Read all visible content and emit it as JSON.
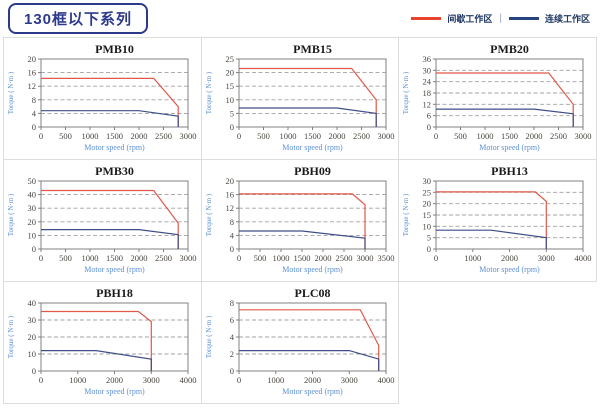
{
  "header": {
    "title": "130框以下系列",
    "legend_separator": "|",
    "legend": [
      {
        "label": "间歇工作区",
        "color": "#e8432c"
      },
      {
        "label": "连续工作区",
        "color": "#26457e"
      }
    ]
  },
  "chart_style": {
    "grid_color": "#a0a0a0",
    "frame_color": "#808080",
    "tick_text_color": "#4a463f",
    "axis_label_color": "#5b8fd4",
    "title_color": "#1a1a1a"
  },
  "chart_data": [
    {
      "type": "line",
      "title": "PMB10",
      "xlabel": "Motor speed (rpm)",
      "ylabel": "Torque ( N·m )",
      "xlim": [
        0,
        3000
      ],
      "ylim": [
        0,
        20
      ],
      "xticks": [
        0,
        500,
        1000,
        1500,
        2000,
        2500,
        3000
      ],
      "yticks": [
        0,
        4,
        8,
        12,
        16,
        20
      ],
      "grid": true,
      "series": [
        {
          "name": "间歇工作区",
          "color": "#e0584a",
          "points": [
            [
              0,
              14.3
            ],
            [
              2300,
              14.3
            ],
            [
              2800,
              6
            ],
            [
              2800,
              0
            ]
          ]
        },
        {
          "name": "连续工作区",
          "color": "#3e4f87",
          "points": [
            [
              0,
              4.8
            ],
            [
              2000,
              4.8
            ],
            [
              2800,
              3.2
            ],
            [
              2800,
              0
            ]
          ]
        }
      ]
    },
    {
      "type": "line",
      "title": "PMB15",
      "xlabel": "Motor speed (rpm)",
      "ylabel": "Torque ( N·m )",
      "xlim": [
        0,
        3000
      ],
      "ylim": [
        0,
        25
      ],
      "xticks": [
        0,
        500,
        1000,
        1500,
        2000,
        2500,
        3000
      ],
      "yticks": [
        0,
        5,
        10,
        15,
        20,
        25
      ],
      "grid": true,
      "series": [
        {
          "name": "间歇工作区",
          "color": "#e0584a",
          "points": [
            [
              0,
              21.5
            ],
            [
              2300,
              21.5
            ],
            [
              2800,
              10
            ],
            [
              2800,
              0
            ]
          ]
        },
        {
          "name": "连续工作区",
          "color": "#3e4f87",
          "points": [
            [
              0,
              7
            ],
            [
              2000,
              7
            ],
            [
              2800,
              5
            ],
            [
              2800,
              0
            ]
          ]
        }
      ]
    },
    {
      "type": "line",
      "title": "PMB20",
      "xlabel": "Motor speed (rpm)",
      "ylabel": "Torque ( N·m )",
      "xlim": [
        0,
        3000
      ],
      "ylim": [
        0,
        36
      ],
      "xticks": [
        0,
        500,
        1000,
        1500,
        2000,
        2500,
        3000
      ],
      "yticks": [
        0,
        6,
        12,
        18,
        24,
        30,
        36
      ],
      "grid": true,
      "series": [
        {
          "name": "间歇工作区",
          "color": "#e0584a",
          "points": [
            [
              0,
              28.6
            ],
            [
              2300,
              28.6
            ],
            [
              2800,
              12
            ],
            [
              2800,
              0
            ]
          ]
        },
        {
          "name": "连续工作区",
          "color": "#3e4f87",
          "points": [
            [
              0,
              9.5
            ],
            [
              2000,
              9.5
            ],
            [
              2800,
              7
            ],
            [
              2800,
              0
            ]
          ]
        }
      ]
    },
    {
      "type": "line",
      "title": "PMB30",
      "xlabel": "Motor speed (rpm)",
      "ylabel": "Torque ( N·m )",
      "xlim": [
        0,
        3000
      ],
      "ylim": [
        0,
        50
      ],
      "xticks": [
        0,
        500,
        1000,
        1500,
        2000,
        2500,
        3000
      ],
      "yticks": [
        0,
        10,
        20,
        30,
        40,
        50
      ],
      "grid": true,
      "series": [
        {
          "name": "间歇工作区",
          "color": "#e0584a",
          "points": [
            [
              0,
              43
            ],
            [
              2300,
              43
            ],
            [
              2800,
              19
            ],
            [
              2800,
              0
            ]
          ]
        },
        {
          "name": "连续工作区",
          "color": "#3e4f87",
          "points": [
            [
              0,
              14.3
            ],
            [
              2000,
              14.3
            ],
            [
              2800,
              10.5
            ],
            [
              2800,
              0
            ]
          ]
        }
      ]
    },
    {
      "type": "line",
      "title": "PBH09",
      "xlabel": "Motor speed (rpm)",
      "ylabel": "Torque ( N·m )",
      "xlim": [
        0,
        3500
      ],
      "ylim": [
        0,
        20
      ],
      "xticks": [
        0,
        500,
        1000,
        1500,
        2000,
        2500,
        3000,
        3500
      ],
      "yticks": [
        0,
        4,
        8,
        12,
        16,
        20
      ],
      "grid": true,
      "series": [
        {
          "name": "间歇工作区",
          "color": "#e0584a",
          "points": [
            [
              0,
              16.2
            ],
            [
              2700,
              16.2
            ],
            [
              3000,
              13
            ],
            [
              3000,
              0
            ]
          ]
        },
        {
          "name": "连续工作区",
          "color": "#3e4f87",
          "points": [
            [
              0,
              5.3
            ],
            [
              1500,
              5.3
            ],
            [
              3000,
              3.2
            ],
            [
              3000,
              0
            ]
          ]
        }
      ]
    },
    {
      "type": "line",
      "title": "PBH13",
      "xlabel": "Motor speed (rpm)",
      "ylabel": "Torque ( N·m )",
      "xlim": [
        0,
        4000
      ],
      "ylim": [
        0,
        30
      ],
      "xticks": [
        0,
        1000,
        2000,
        3000,
        4000
      ],
      "yticks": [
        0,
        5,
        10,
        15,
        20,
        25,
        30
      ],
      "grid": true,
      "series": [
        {
          "name": "间歇工作区",
          "color": "#e0584a",
          "points": [
            [
              0,
              25.2
            ],
            [
              2700,
              25.2
            ],
            [
              3000,
              21
            ],
            [
              3000,
              0
            ]
          ]
        },
        {
          "name": "连续工作区",
          "color": "#3e4f87",
          "points": [
            [
              0,
              8.3
            ],
            [
              1500,
              8.3
            ],
            [
              3000,
              5
            ],
            [
              3000,
              0
            ]
          ]
        }
      ]
    },
    {
      "type": "line",
      "title": "PBH18",
      "xlabel": "Motor speed (rpm)",
      "ylabel": "Torque ( N·m )",
      "xlim": [
        0,
        4000
      ],
      "ylim": [
        0,
        40
      ],
      "xticks": [
        0,
        1000,
        2000,
        3000,
        4000
      ],
      "yticks": [
        0,
        10,
        20,
        30,
        40
      ],
      "grid": true,
      "series": [
        {
          "name": "间歇工作区",
          "color": "#e0584a",
          "points": [
            [
              0,
              35
            ],
            [
              2650,
              35
            ],
            [
              3000,
              29
            ],
            [
              3000,
              0
            ]
          ]
        },
        {
          "name": "连续工作区",
          "color": "#3e4f87",
          "points": [
            [
              0,
              12
            ],
            [
              1500,
              12
            ],
            [
              3000,
              7
            ],
            [
              3000,
              0
            ]
          ]
        }
      ]
    },
    {
      "type": "line",
      "title": "PLC08",
      "xlabel": "Motor speed (rpm)",
      "ylabel": "Torque ( N·m )",
      "xlim": [
        0,
        4000
      ],
      "ylim": [
        0,
        8
      ],
      "xticks": [
        0,
        1000,
        2000,
        3000,
        4000
      ],
      "yticks": [
        0,
        2,
        4,
        6,
        8
      ],
      "grid": true,
      "series": [
        {
          "name": "间歇工作区",
          "color": "#e0584a",
          "points": [
            [
              0,
              7.2
            ],
            [
              3300,
              7.2
            ],
            [
              3800,
              3
            ],
            [
              3800,
              0
            ]
          ]
        },
        {
          "name": "连续工作区",
          "color": "#3e4f87",
          "points": [
            [
              0,
              2.4
            ],
            [
              3000,
              2.4
            ],
            [
              3800,
              1.4
            ],
            [
              3800,
              0
            ]
          ]
        }
      ]
    }
  ]
}
